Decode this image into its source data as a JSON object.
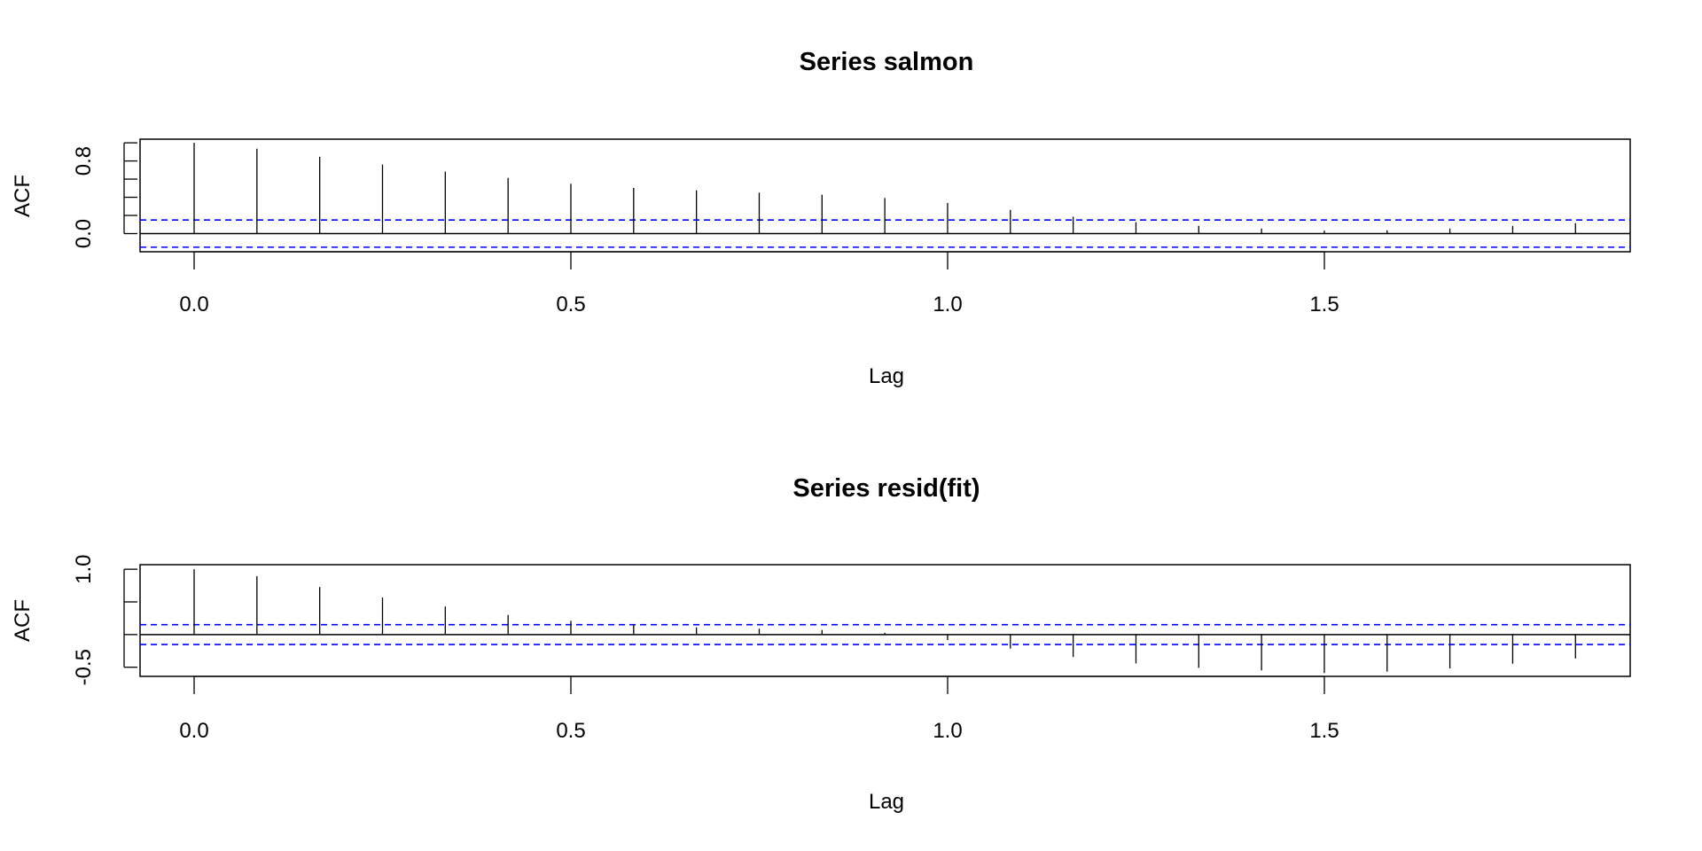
{
  "chart_data": [
    {
      "type": "bar",
      "title": "Series  salmon",
      "xlabel": "Lag",
      "ylabel": "ACF",
      "xlim": [
        -0.07,
        1.9
      ],
      "ylim": [
        -0.2,
        1.04
      ],
      "xticks": [
        0.0,
        0.5,
        1.0,
        1.5
      ],
      "xtick_labels": [
        "0.0",
        "0.5",
        "1.0",
        "1.5"
      ],
      "yticks": [
        0.0,
        0.2,
        0.4,
        0.6,
        0.8,
        1.0
      ],
      "ytick_labels": [
        "0.0",
        "",
        "",
        "",
        "0.8",
        ""
      ],
      "lag_step": 0.08333,
      "values": [
        1.0,
        0.935,
        0.846,
        0.761,
        0.683,
        0.614,
        0.549,
        0.503,
        0.477,
        0.451,
        0.428,
        0.392,
        0.337,
        0.261,
        0.186,
        0.124,
        0.085,
        0.056,
        0.033,
        0.036,
        0.056,
        0.085,
        0.114
      ],
      "ci": 0.15,
      "ci_color": "#0000ff"
    },
    {
      "type": "bar",
      "title": "Series  resid(fit)",
      "xlabel": "Lag",
      "ylabel": "ACF",
      "xlim": [
        -0.07,
        1.9
      ],
      "ylim": [
        -0.64,
        1.07
      ],
      "xticks": [
        0.0,
        0.5,
        1.0,
        1.5
      ],
      "xtick_labels": [
        "0.0",
        "0.5",
        "1.0",
        "1.5"
      ],
      "yticks": [
        -0.5,
        0.0,
        0.5,
        1.0
      ],
      "ytick_labels": [
        "-0.5",
        "",
        "",
        "1.0"
      ],
      "lag_step": 0.08333,
      "values": [
        1.0,
        0.893,
        0.728,
        0.567,
        0.429,
        0.3,
        0.21,
        0.152,
        0.11,
        0.09,
        0.07,
        0.027,
        -0.085,
        -0.214,
        -0.344,
        -0.442,
        -0.509,
        -0.549,
        -0.589,
        -0.567,
        -0.518,
        -0.446,
        -0.366
      ],
      "ci": 0.152,
      "ci_color": "#0000ff"
    }
  ]
}
